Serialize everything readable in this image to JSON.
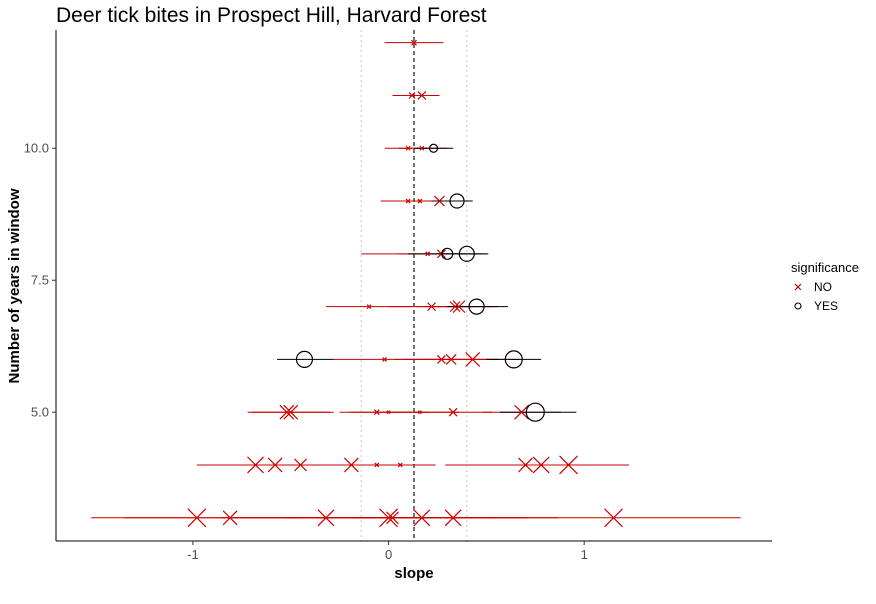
{
  "chart_data": {
    "type": "scatter",
    "title": "Deer tick bites in Prospect Hill, Harvard Forest",
    "xlabel": "slope",
    "ylabel": "Number of years in window",
    "xlim": [
      -1.7,
      1.96
    ],
    "ylim": [
      2.56,
      12.24
    ],
    "x_ticks": [
      -1,
      0,
      1
    ],
    "x_tick_labels": [
      "-1",
      "0",
      "1"
    ],
    "y_ticks": [
      5.0,
      7.5,
      10.0
    ],
    "y_tick_labels": [
      "5.0",
      "7.5",
      "10.0"
    ],
    "vline_dashed": 0.13,
    "vlines_dotted": [
      -0.14,
      0.4
    ],
    "grid": false,
    "legend": {
      "title": "significance",
      "position": "right",
      "entries": [
        {
          "label": "NO",
          "shape": "x",
          "color": "#cc0000"
        },
        {
          "label": "YES",
          "shape": "circle",
          "color": "#000000"
        }
      ]
    },
    "points": [
      {
        "y": 12,
        "x": 0.13,
        "lo": -0.02,
        "hi": 0.28,
        "sig": "NO",
        "size": 2.5
      },
      {
        "y": 11,
        "x": 0.12,
        "lo": 0.02,
        "hi": 0.26,
        "sig": "NO",
        "size": 3
      },
      {
        "y": 11,
        "x": 0.17,
        "lo": 0.05,
        "hi": 0.26,
        "sig": "NO",
        "size": 4
      },
      {
        "y": 10,
        "x": 0.1,
        "lo": -0.02,
        "hi": 0.2,
        "sig": "NO",
        "size": 2
      },
      {
        "y": 10,
        "x": 0.17,
        "lo": 0.05,
        "hi": 0.3,
        "sig": "NO",
        "size": 2
      },
      {
        "y": 10,
        "x": 0.23,
        "lo": 0.13,
        "hi": 0.33,
        "sig": "YES",
        "size": 4
      },
      {
        "y": 9,
        "x": 0.1,
        "lo": -0.04,
        "hi": 0.23,
        "sig": "NO",
        "size": 2
      },
      {
        "y": 9,
        "x": 0.16,
        "lo": 0.02,
        "hi": 0.3,
        "sig": "NO",
        "size": 2
      },
      {
        "y": 9,
        "x": 0.26,
        "lo": 0.1,
        "hi": 0.4,
        "sig": "NO",
        "size": 5
      },
      {
        "y": 9,
        "x": 0.35,
        "lo": 0.22,
        "hi": 0.43,
        "sig": "YES",
        "size": 7
      },
      {
        "y": 8,
        "x": 0.2,
        "lo": -0.14,
        "hi": 0.4,
        "sig": "NO",
        "size": 2
      },
      {
        "y": 8,
        "x": 0.27,
        "lo": 0.05,
        "hi": 0.47,
        "sig": "NO",
        "size": 4
      },
      {
        "y": 8,
        "x": 0.3,
        "lo": 0.1,
        "hi": 0.5,
        "sig": "YES",
        "size": 5.5
      },
      {
        "y": 8,
        "x": 0.4,
        "lo": 0.24,
        "hi": 0.51,
        "sig": "YES",
        "size": 7.5
      },
      {
        "y": 7,
        "x": -0.1,
        "lo": -0.32,
        "hi": 0.12,
        "sig": "NO",
        "size": 2
      },
      {
        "y": 7,
        "x": 0.22,
        "lo": 0.0,
        "hi": 0.44,
        "sig": "NO",
        "size": 4
      },
      {
        "y": 7,
        "x": 0.34,
        "lo": 0.14,
        "hi": 0.54,
        "sig": "NO",
        "size": 5
      },
      {
        "y": 7,
        "x": 0.36,
        "lo": 0.18,
        "hi": 0.56,
        "sig": "NO",
        "size": 6
      },
      {
        "y": 7,
        "x": 0.45,
        "lo": 0.3,
        "hi": 0.61,
        "sig": "YES",
        "size": 7.5
      },
      {
        "y": 6,
        "x": -0.43,
        "lo": -0.57,
        "hi": -0.28,
        "sig": "YES",
        "size": 8
      },
      {
        "y": 6,
        "x": -0.02,
        "lo": -0.28,
        "hi": 0.24,
        "sig": "NO",
        "size": 2
      },
      {
        "y": 6,
        "x": 0.27,
        "lo": 0.03,
        "hi": 0.51,
        "sig": "NO",
        "size": 4
      },
      {
        "y": 6,
        "x": 0.32,
        "lo": 0.08,
        "hi": 0.56,
        "sig": "NO",
        "size": 5
      },
      {
        "y": 6,
        "x": 0.43,
        "lo": 0.19,
        "hi": 0.67,
        "sig": "NO",
        "size": 7
      },
      {
        "y": 6,
        "x": 0.64,
        "lo": 0.5,
        "hi": 0.78,
        "sig": "YES",
        "size": 8.5
      },
      {
        "y": 5,
        "x": -0.52,
        "lo": -0.72,
        "hi": -0.28,
        "sig": "NO",
        "size": 7
      },
      {
        "y": 5,
        "x": -0.5,
        "lo": -0.7,
        "hi": -0.3,
        "sig": "NO",
        "size": 7
      },
      {
        "y": 5,
        "x": -0.06,
        "lo": -0.25,
        "hi": 0.12,
        "sig": "NO",
        "size": 2.5
      },
      {
        "y": 5,
        "x": 0.0,
        "lo": -0.2,
        "hi": 0.2,
        "sig": "NO",
        "size": 1.5
      },
      {
        "y": 5,
        "x": 0.16,
        "lo": -0.04,
        "hi": 0.36,
        "sig": "NO",
        "size": 1.5
      },
      {
        "y": 5,
        "x": 0.33,
        "lo": 0.13,
        "hi": 0.53,
        "sig": "NO",
        "size": 4
      },
      {
        "y": 5,
        "x": 0.68,
        "lo": 0.48,
        "hi": 0.88,
        "sig": "NO",
        "size": 7
      },
      {
        "y": 5,
        "x": 0.75,
        "lo": 0.57,
        "hi": 0.96,
        "sig": "YES",
        "size": 9
      },
      {
        "y": 4,
        "x": -0.68,
        "lo": -0.98,
        "hi": -0.38,
        "sig": "NO",
        "size": 8
      },
      {
        "y": 4,
        "x": -0.58,
        "lo": -0.88,
        "hi": -0.28,
        "sig": "NO",
        "size": 7
      },
      {
        "y": 4,
        "x": -0.45,
        "lo": -0.75,
        "hi": -0.15,
        "sig": "NO",
        "size": 6
      },
      {
        "y": 4,
        "x": -0.19,
        "lo": -0.49,
        "hi": 0.11,
        "sig": "NO",
        "size": 7
      },
      {
        "y": 4,
        "x": -0.06,
        "lo": -0.36,
        "hi": 0.24,
        "sig": "NO",
        "size": 2
      },
      {
        "y": 4,
        "x": 0.06,
        "lo": -0.24,
        "hi": 0.24,
        "sig": "NO",
        "size": 2
      },
      {
        "y": 4,
        "x": 0.7,
        "lo": 0.29,
        "hi": 1.11,
        "sig": "NO",
        "size": 7
      },
      {
        "y": 4,
        "x": 0.78,
        "lo": 0.37,
        "hi": 1.19,
        "sig": "NO",
        "size": 8
      },
      {
        "y": 4,
        "x": 0.92,
        "lo": 0.61,
        "hi": 1.23,
        "sig": "NO",
        "size": 9
      },
      {
        "y": 3,
        "x": -0.98,
        "lo": -1.52,
        "hi": -0.44,
        "sig": "NO",
        "size": 9
      },
      {
        "y": 3,
        "x": -0.81,
        "lo": -1.35,
        "hi": -0.27,
        "sig": "NO",
        "size": 7
      },
      {
        "y": 3,
        "x": -0.32,
        "lo": -0.86,
        "hi": 0.22,
        "sig": "NO",
        "size": 8
      },
      {
        "y": 3,
        "x": 0.0,
        "lo": -0.54,
        "hi": 0.54,
        "sig": "NO",
        "size": 9
      },
      {
        "y": 3,
        "x": 0.02,
        "lo": -0.52,
        "hi": 0.56,
        "sig": "NO",
        "size": 6
      },
      {
        "y": 3,
        "x": 0.17,
        "lo": -0.37,
        "hi": 0.71,
        "sig": "NO",
        "size": 8
      },
      {
        "y": 3,
        "x": 0.33,
        "lo": -0.21,
        "hi": 0.87,
        "sig": "NO",
        "size": 8
      },
      {
        "y": 3,
        "x": 1.15,
        "lo": 0.5,
        "hi": 1.8,
        "sig": "NO",
        "size": 9
      }
    ]
  }
}
